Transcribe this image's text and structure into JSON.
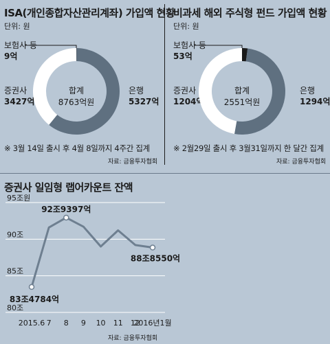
{
  "left_panel": {
    "title": "ISA(개인종합자산관리계좌) 가입액 현황",
    "unit": "단위: 원",
    "center_title": "합계",
    "center_value": "8763억원",
    "labels": [
      {
        "name": "보험사 등",
        "value": "9억"
      },
      {
        "name": "증권사",
        "value": "3427억"
      },
      {
        "name": "은행",
        "value": "5327억"
      }
    ],
    "note": "※ 3월 14일 출시 후 4월 8일까지 4주간 집계",
    "source": "자료: 금융투자협회"
  },
  "right_panel": {
    "title": "비과세 해외 주식형 펀드 가입액 현황",
    "unit": "단위: 원",
    "center_title": "합계",
    "center_value": "2551억원",
    "labels": [
      {
        "name": "보험사 등",
        "value": "53억"
      },
      {
        "name": "증권사",
        "value": "1204억"
      },
      {
        "name": "은행",
        "value": "1294억"
      }
    ],
    "note": "※ 2월29일 출시 후 3월31일까지 한 달간 집계",
    "source": "자료: 금융투자협회"
  },
  "bottom_panel": {
    "title": "증권사 일임형 랩어카운트 잔액",
    "source": "자료: 금융투자협회",
    "annotations": [
      "92조9397억",
      "83조4784억",
      "88조8550억"
    ]
  },
  "colors": {
    "background": "#b9c7d5",
    "bank": "#5f7080",
    "securities": "#ffffff",
    "insurance": "#1a1a1a",
    "line": "#6e7f90"
  },
  "chart_data": [
    {
      "type": "pie",
      "title": "ISA(개인종합자산관리계좌) 가입액 현황",
      "unit": "억원",
      "categories": [
        "보험사 등",
        "증권사",
        "은행"
      ],
      "values": [
        9,
        3427,
        5327
      ]
    },
    {
      "type": "pie",
      "title": "비과세 해외 주식형 펀드 가입액 현황",
      "unit": "억원",
      "categories": [
        "보험사 등",
        "증권사",
        "은행"
      ],
      "values": [
        53,
        1204,
        1294
      ]
    },
    {
      "type": "line",
      "title": "증권사 일임형 랩어카운트 잔액",
      "x": [
        "2015.6",
        "7",
        "8",
        "9",
        "10",
        "11",
        "12",
        "2016년1월"
      ],
      "y_ticks": [
        "80조",
        "85조",
        "90조",
        "95조원"
      ],
      "ylim": [
        80,
        95
      ],
      "values": [
        83.4784,
        91.6,
        92.9397,
        91.7,
        89.0,
        91.2,
        89.2,
        88.855
      ],
      "grid": true
    }
  ]
}
